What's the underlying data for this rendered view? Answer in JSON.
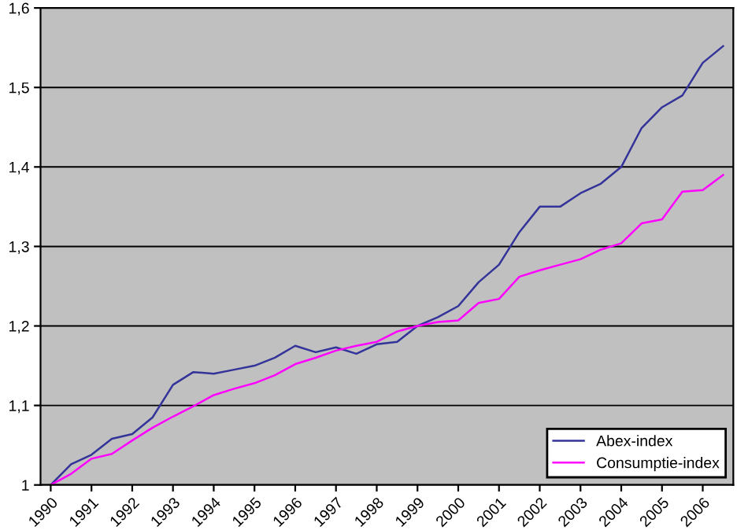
{
  "chart_data": {
    "type": "line",
    "categories": [
      "1990",
      null,
      "1991",
      null,
      "1992",
      null,
      "1993",
      null,
      "1994",
      null,
      "1995",
      null,
      "1996",
      null,
      "1997",
      null,
      "1998",
      null,
      "1999",
      null,
      "2000",
      null,
      "2001",
      null,
      "2002",
      null,
      "2003",
      null,
      "2004",
      null,
      "2005",
      null,
      "2006",
      null
    ],
    "series": [
      {
        "name": "Abex-index",
        "color": "#333399",
        "values": [
          1.0,
          1.026,
          1.038,
          1.058,
          1.064,
          1.085,
          1.126,
          1.142,
          1.14,
          1.145,
          1.15,
          1.16,
          1.175,
          1.167,
          1.173,
          1.165,
          1.177,
          1.18,
          1.2,
          1.211,
          1.225,
          1.255,
          1.277,
          1.318,
          1.35,
          1.35,
          1.367,
          1.379,
          1.4,
          1.449,
          1.475,
          1.49,
          1.531,
          1.552
        ]
      },
      {
        "name": "Consumptie-index",
        "color": "#ff00ff",
        "values": [
          1.0,
          1.014,
          1.033,
          1.039,
          1.056,
          1.072,
          1.086,
          1.099,
          1.113,
          1.121,
          1.128,
          1.138,
          1.152,
          1.16,
          1.169,
          1.175,
          1.18,
          1.193,
          1.2,
          1.205,
          1.207,
          1.229,
          1.234,
          1.262,
          1.27,
          1.277,
          1.284,
          1.296,
          1.304,
          1.329,
          1.334,
          1.369,
          1.371,
          1.39
        ]
      }
    ],
    "ylim": [
      1,
      1.6
    ],
    "yticks": [
      1,
      {
        "value": 1.1,
        "label": "1,1"
      },
      {
        "value": 1.2,
        "label": "1,2"
      },
      {
        "value": 1.3,
        "label": "1,3"
      },
      {
        "value": 1.4,
        "label": "1,4"
      },
      {
        "value": 1.5,
        "label": "1,5"
      },
      {
        "value": 1.6,
        "label": "1,6"
      }
    ],
    "grid": "y",
    "legend": "bottom right",
    "marker": "none",
    "line_style": "solid"
  }
}
